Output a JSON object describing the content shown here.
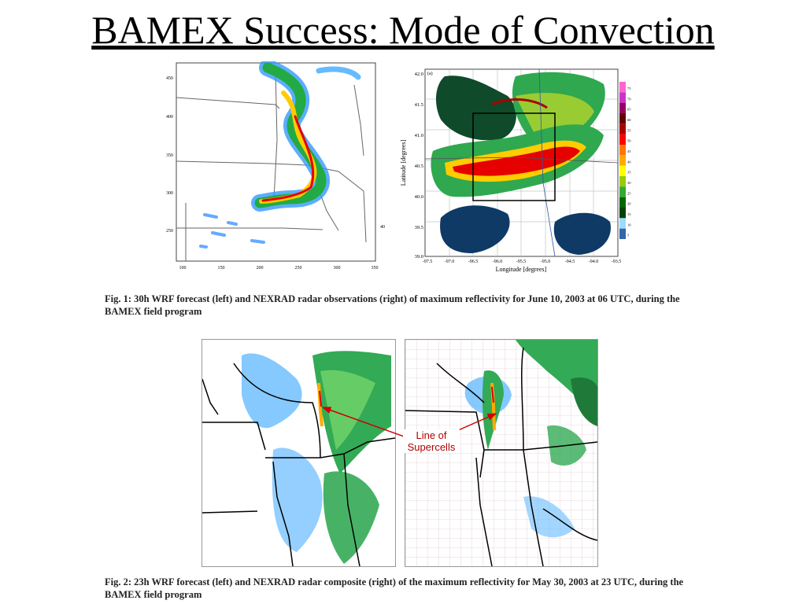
{
  "slide": {
    "title": "BAMEX Success: Mode of Convection"
  },
  "figure1": {
    "left_map": {
      "y_ticks": [
        "450",
        "400",
        "350",
        "300",
        "250"
      ],
      "x_ticks": [
        "100",
        "150",
        "200",
        "250",
        "300",
        "350"
      ],
      "right_tick": "40"
    },
    "right_map": {
      "corner_label": "(a)",
      "y_ticks": [
        "42.0",
        "41.5",
        "41.0",
        "40.5",
        "40.0",
        "39.5",
        "39.0"
      ],
      "x_ticks": [
        "-97.5",
        "-97.0",
        "-96.5",
        "-96.0",
        "-95.5",
        "-95.0",
        "-94.5",
        "-94.0",
        "-93.5"
      ],
      "y_label": "Latitude [degrees]",
      "x_label": "Longitude [degrees]",
      "colorbar_labels": [
        "75",
        "70",
        "65",
        "60",
        "55",
        "50",
        "45",
        "40",
        "35",
        "30",
        "25",
        "20",
        "15",
        "10",
        "5"
      ],
      "colorbar_colors": [
        "#ff66cc",
        "#cc33cc",
        "#990066",
        "#660000",
        "#aa0000",
        "#ff0000",
        "#ff7700",
        "#ffaa00",
        "#ffff00",
        "#99cc00",
        "#33aa33",
        "#006600",
        "#004400",
        "#99ddff",
        "#3366aa"
      ]
    },
    "caption": "Fig. 1: 30h WRF forecast (left) and NEXRAD radar observations (right) of maximum reflectivity for June 10, 2003 at 06 UTC, during the BAMEX field program"
  },
  "figure2": {
    "annotation_line1": "Line of",
    "annotation_line2": "Supercells",
    "caption": "Fig. 2: 23h WRF forecast (left) and NEXRAD radar composite (right) of the maximum reflectivity for May 30, 2003 at 23 UTC, during the BAMEX field program"
  }
}
